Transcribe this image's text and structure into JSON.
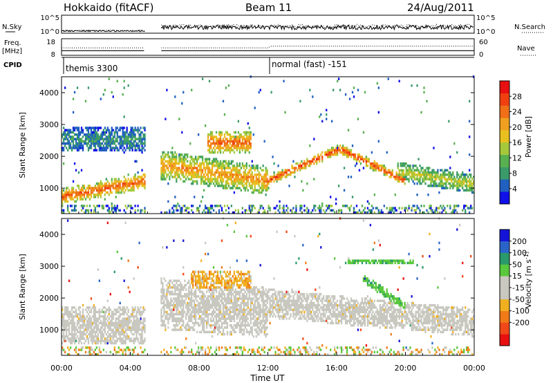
{
  "header": {
    "station": "Hokkaido (fitACF)",
    "beam": "Beam 11",
    "date": "24/Aug/2011"
  },
  "top_strips": {
    "nsky_label": "N.Sky",
    "nsearch_label": "N.Search",
    "nsky_ticks": [
      "10^5",
      "10^0"
    ],
    "nsearch_ticks": [
      "10^5",
      "10^0"
    ],
    "freq_label_1": "Freq.",
    "freq_label_2": "[MHz]",
    "freq_ticks": [
      "18",
      "8"
    ],
    "nave_label": "Nave",
    "nave_ticks": [
      "60",
      "0"
    ],
    "cpid_label": "CPID",
    "cpid_segments": [
      {
        "label": "themis 3300",
        "start_hour": 0
      },
      {
        "label": "normal (fast) -151",
        "start_hour": 12
      }
    ]
  },
  "x_axis": {
    "label": "Time UT",
    "range_hours": [
      0,
      24
    ],
    "ticks": [
      {
        "hour": 0,
        "label": "00:00"
      },
      {
        "hour": 4,
        "label": "04:00"
      },
      {
        "hour": 8,
        "label": "08:00"
      },
      {
        "hour": 12,
        "label": "12:00"
      },
      {
        "hour": 16,
        "label": "16:00"
      },
      {
        "hour": 20,
        "label": "20:00"
      },
      {
        "hour": 24,
        "label": "00:00"
      }
    ]
  },
  "data_gap_hours": [
    4.85,
    5.75
  ],
  "colors": {
    "power": [
      "#1010e8",
      "#2060c0",
      "#3a9a6a",
      "#58b050",
      "#a6c83c",
      "#e8c020",
      "#f0a020",
      "#f07018",
      "#f04010",
      "#e81010"
    ],
    "velocity": [
      "#1414d8",
      "#2a64c8",
      "#2a9a6a",
      "#5ac83c",
      "#c8c8c0",
      "#c8c8c0",
      "#f0b020",
      "#f07a18",
      "#f04818",
      "#e81010"
    ],
    "ground": "#c8c8c0"
  },
  "chart_data": [
    {
      "type": "heatmap",
      "title": "",
      "xlabel": "Time UT",
      "ylabel": "Slant Range [km]",
      "xlim": [
        0,
        24
      ],
      "ylim": [
        200,
        4500
      ],
      "y_ticks": [
        1000,
        2000,
        3000,
        4000
      ],
      "colorbar": {
        "label": "Power [dB]",
        "range": [
          0,
          32
        ],
        "ticks": [
          4,
          8,
          12,
          16,
          20,
          24,
          28
        ]
      },
      "features": [
        {
          "name": "band_00_05",
          "x_range": [
            0,
            4.85
          ],
          "center_range_km": [
            700,
            1200
          ],
          "width_km": 500,
          "value_db": 26
        },
        {
          "name": "band_06_12",
          "x_range": [
            5.75,
            12
          ],
          "center_range_km": [
            1700,
            1200
          ],
          "width_km": 900,
          "value_db": 22
        },
        {
          "name": "f_region_09_11",
          "x_range": [
            8.5,
            11
          ],
          "center_range_km": [
            2400,
            2400
          ],
          "width_km": 700,
          "value_db": 26
        },
        {
          "name": "arc_12_20",
          "x_range": [
            12,
            20
          ],
          "center_range_km": [
            1200,
            1200
          ],
          "peak_range_km": 2200,
          "peak_hour": 16.2,
          "width_km": 300,
          "value_db": 28
        },
        {
          "name": "band_20_24",
          "x_range": [
            19.5,
            24
          ],
          "center_range_km": [
            1500,
            1100
          ],
          "width_km": 600,
          "value_db": 16
        },
        {
          "name": "patch_00_04_upper",
          "x_range": [
            0,
            4.85
          ],
          "center_range_km": [
            2500,
            2500
          ],
          "width_km": 800,
          "value_db": 8
        }
      ]
    },
    {
      "type": "heatmap",
      "title": "",
      "xlabel": "Time UT",
      "ylabel": "Slant Range [km]",
      "xlim": [
        0,
        24
      ],
      "ylim": [
        200,
        4500
      ],
      "y_ticks": [
        1000,
        2000,
        3000,
        4000
      ],
      "colorbar": {
        "label": "Velocity [m s^-1]",
        "range": [
          -250,
          250
        ],
        "ticks": [
          200,
          100,
          50,
          15,
          -15,
          -50,
          -100,
          -200
        ]
      },
      "features": [
        {
          "name": "ground_00_05",
          "x_range": [
            0,
            4.85
          ],
          "center_range_km": [
            1100,
            1100
          ],
          "width_km": 1200,
          "value_ms": 0
        },
        {
          "name": "ground_06_12",
          "x_range": [
            5.75,
            12
          ],
          "center_range_km": [
            1800,
            1500
          ],
          "width_km": 1600,
          "value_ms": 0
        },
        {
          "name": "neg_06_12",
          "x_range": [
            7.5,
            11
          ],
          "center_range_km": [
            2500,
            2500
          ],
          "width_km": 600,
          "value_ms": -40
        },
        {
          "name": "ground_12_24",
          "x_range": [
            12,
            24
          ],
          "center_range_km": [
            1800,
            1200
          ],
          "width_km": 900,
          "value_ms": 0
        },
        {
          "name": "pos_18_20",
          "x_range": [
            17.5,
            20
          ],
          "center_range_km": [
            2600,
            1700
          ],
          "width_km": 300,
          "value_ms": 40
        },
        {
          "name": "pos_high",
          "x_range": [
            16.5,
            20.5
          ],
          "center_range_km": [
            3100,
            3100
          ],
          "width_km": 200,
          "value_ms": 40
        }
      ]
    }
  ]
}
